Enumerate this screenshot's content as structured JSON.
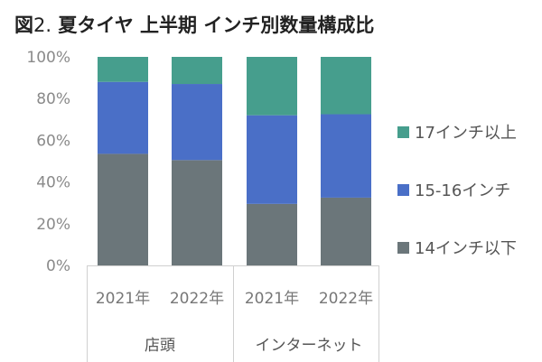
{
  "title": {
    "prefix": "図",
    "number": "2.",
    "text": "夏タイヤ 上半期 インチ別数量構成比"
  },
  "chart_data": {
    "type": "bar",
    "stacked": true,
    "categories": [
      "2021年",
      "2022年",
      "2021年",
      "2022年"
    ],
    "groups": [
      {
        "label": "店頭",
        "categories": [
          0,
          1
        ]
      },
      {
        "label": "インターネット",
        "categories": [
          2,
          3
        ]
      }
    ],
    "series": [
      {
        "name": "14インチ以下",
        "color": "#6b767a",
        "values": [
          53.5,
          50.5,
          29.5,
          32.5
        ]
      },
      {
        "name": "15-16インチ",
        "color": "#4a6fc7",
        "values": [
          34.5,
          36.5,
          42.5,
          40.0
        ]
      },
      {
        "name": "17インチ以上",
        "color": "#469e8d",
        "values": [
          12.0,
          13.0,
          28.0,
          27.5
        ]
      }
    ],
    "yticks": [
      "0%",
      "20%",
      "40%",
      "60%",
      "80%",
      "100%"
    ],
    "ylim": [
      0,
      100
    ],
    "grid": false,
    "legend_position": "right"
  }
}
